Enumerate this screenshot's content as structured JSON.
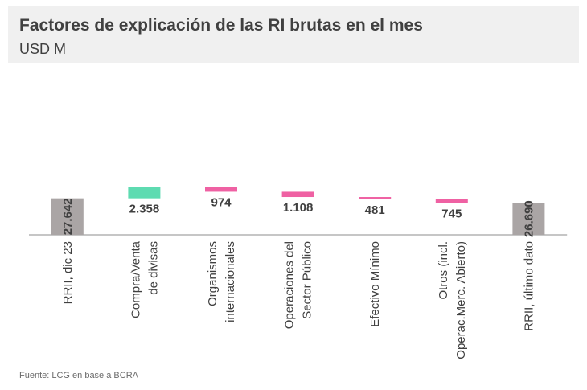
{
  "header": {
    "title": "Factores de explicación de las RI brutas en el mes",
    "subtitle": "USD M"
  },
  "source": "Fuente: LCG en base a BCRA",
  "colors": {
    "total": "#aaa5a5",
    "increase": "#5edbb1",
    "decrease": "#ef61a3",
    "axis": "#8c8c8c",
    "text": "#404040"
  },
  "chart_data": {
    "type": "bar",
    "subtype": "waterfall",
    "title": "Factores de explicación de las RI brutas en el mes",
    "ylabel": "USD M",
    "categories": [
      [
        "RRII, dic 23"
      ],
      [
        "Compra/Venta",
        "de divisas"
      ],
      [
        "Organismos",
        "internacionales"
      ],
      [
        "Operaciones del",
        "Sector Público"
      ],
      [
        "Efectivo Mínimo"
      ],
      [
        "Otros (incl.",
        "Operac.Merc. Abierto)"
      ],
      [
        "RRII, último dato"
      ]
    ],
    "values": [
      27642,
      2358,
      -974,
      -1108,
      -481,
      -745,
      26690
    ],
    "labels": [
      "27.642",
      "2.358",
      "974",
      "1.108",
      "481",
      "745",
      "26.690"
    ],
    "kinds": [
      "total",
      "increase",
      "decrease",
      "decrease",
      "decrease",
      "decrease",
      "total"
    ]
  }
}
